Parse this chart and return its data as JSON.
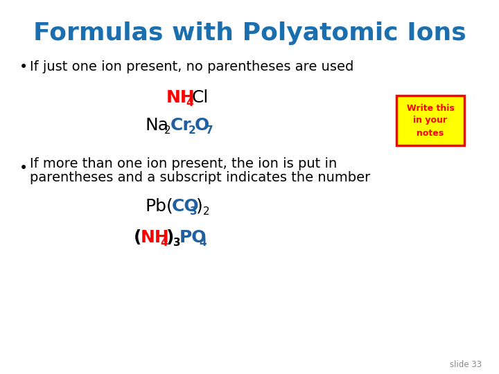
{
  "title": "Formulas with Polyatomic Ions",
  "title_color": "#1b6fae",
  "background_color": "#ffffff",
  "bullet1": "If just one ion present, no parentheses are used",
  "bullet2_line1": "If more than one ion present, the ion is put in",
  "bullet2_line2": "parentheses and a subscript indicates the number",
  "slide_num": "slide 33",
  "note_box_bg": "#FFFF00",
  "note_box_border": "#FF0000",
  "note_text": "Write this\nin your\nnotes",
  "note_text_color": "#FF0000",
  "red_color": "#FF0000",
  "blue_color": "#2060a0",
  "black_color": "#000000",
  "title_fontsize": 26,
  "bullet_fontsize": 14,
  "formula_fontsize": 18,
  "formula_sub_fontsize": 11
}
